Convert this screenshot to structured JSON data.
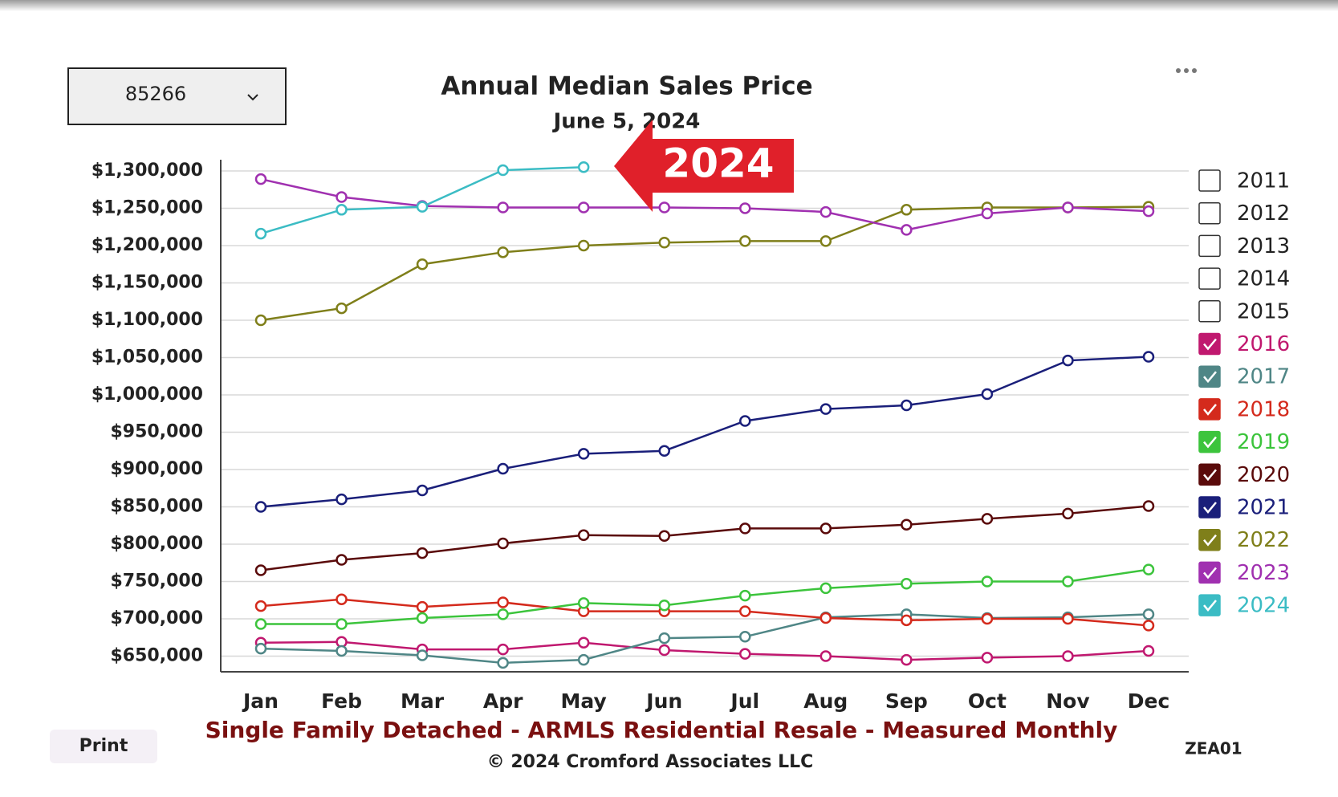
{
  "dropdown": "85266",
  "print": "Print",
  "code": "ZEA01",
  "chart_data": {
    "type": "line",
    "title": "Annual Median Sales Price",
    "subtitle": "June 5, 2024",
    "annotation": "2024",
    "footer": "Single Family Detached - ARMLS Residential Resale - Measured Monthly",
    "copyright": "© 2024 Cromford Associates LLC",
    "categories": [
      "Jan",
      "Feb",
      "Mar",
      "Apr",
      "May",
      "Jun",
      "Jul",
      "Aug",
      "Sep",
      "Oct",
      "Nov",
      "Dec"
    ],
    "ylim": [
      629000,
      1315000
    ],
    "yticks": [
      {
        "value": 650000,
        "label": "$650,000"
      },
      {
        "value": 700000,
        "label": "$700,000"
      },
      {
        "value": 750000,
        "label": "$750,000"
      },
      {
        "value": 800000,
        "label": "$800,000"
      },
      {
        "value": 850000,
        "label": "$850,000"
      },
      {
        "value": 900000,
        "label": "$900,000"
      },
      {
        "value": 950000,
        "label": "$950,000"
      },
      {
        "value": 1000000,
        "label": "$1,000,000"
      },
      {
        "value": 1050000,
        "label": "$1,050,000"
      },
      {
        "value": 1100000,
        "label": "$1,100,000"
      },
      {
        "value": 1150000,
        "label": "$1,150,000"
      },
      {
        "value": 1200000,
        "label": "$1,200,000"
      },
      {
        "value": 1250000,
        "label": "$1,250,000"
      },
      {
        "value": 1300000,
        "label": "$1,300,000"
      }
    ],
    "grid": true,
    "series": [
      {
        "name": "2011",
        "color": "#222222",
        "checked": false,
        "values": [
          null,
          null,
          null,
          null,
          null,
          null,
          null,
          null,
          null,
          null,
          null,
          null
        ]
      },
      {
        "name": "2012",
        "color": "#222222",
        "checked": false,
        "values": [
          null,
          null,
          null,
          null,
          null,
          null,
          null,
          null,
          null,
          null,
          null,
          null
        ]
      },
      {
        "name": "2013",
        "color": "#222222",
        "checked": false,
        "values": [
          null,
          null,
          null,
          null,
          null,
          null,
          null,
          null,
          null,
          null,
          null,
          null
        ]
      },
      {
        "name": "2014",
        "color": "#222222",
        "checked": false,
        "values": [
          null,
          null,
          null,
          null,
          null,
          null,
          null,
          null,
          null,
          null,
          null,
          null
        ]
      },
      {
        "name": "2015",
        "color": "#222222",
        "checked": false,
        "values": [
          null,
          null,
          null,
          null,
          null,
          null,
          null,
          null,
          null,
          null,
          null,
          null
        ]
      },
      {
        "name": "2016",
        "color": "#c0186f",
        "checked": true,
        "values": [
          668000,
          669000,
          659000,
          659000,
          668000,
          658000,
          653000,
          650000,
          645000,
          648000,
          650000,
          657000
        ]
      },
      {
        "name": "2017",
        "color": "#4f8686",
        "checked": true,
        "values": [
          660000,
          657000,
          651000,
          641000,
          645000,
          674000,
          676000,
          702000,
          706000,
          701000,
          702000,
          706000
        ]
      },
      {
        "name": "2018",
        "color": "#d42a1c",
        "checked": true,
        "values": [
          717000,
          726000,
          716000,
          722000,
          710000,
          710000,
          710000,
          701000,
          698000,
          700000,
          700000,
          691000
        ]
      },
      {
        "name": "2019",
        "color": "#3cc43c",
        "checked": true,
        "values": [
          693000,
          693000,
          701000,
          706000,
          721000,
          718000,
          731000,
          741000,
          747000,
          750000,
          750000,
          766000
        ]
      },
      {
        "name": "2020",
        "color": "#5a0a0a",
        "checked": true,
        "values": [
          765000,
          779000,
          788000,
          801000,
          812000,
          811000,
          821000,
          821000,
          826000,
          834000,
          841000,
          851000
        ]
      },
      {
        "name": "2021",
        "color": "#1a1f7a",
        "checked": true,
        "values": [
          850000,
          860000,
          872000,
          901000,
          921000,
          925000,
          965000,
          981000,
          986000,
          1001000,
          1046000,
          1051000
        ]
      },
      {
        "name": "2022",
        "color": "#7f7f1a",
        "checked": true,
        "values": [
          1100000,
          1116000,
          1175000,
          1191000,
          1200000,
          1204000,
          1206000,
          1206000,
          1248000,
          1251000,
          1251000,
          1252000
        ]
      },
      {
        "name": "2023",
        "color": "#a030b0",
        "checked": true,
        "values": [
          1289000,
          1265000,
          1253000,
          1251000,
          1251000,
          1251000,
          1250000,
          1245000,
          1221000,
          1243000,
          1251000,
          1246000
        ]
      },
      {
        "name": "2024",
        "color": "#3bbcc4",
        "checked": true,
        "values": [
          1216000,
          1248000,
          1252000,
          1301000,
          1305000,
          null,
          null,
          null,
          null,
          null,
          null,
          null
        ]
      }
    ]
  }
}
